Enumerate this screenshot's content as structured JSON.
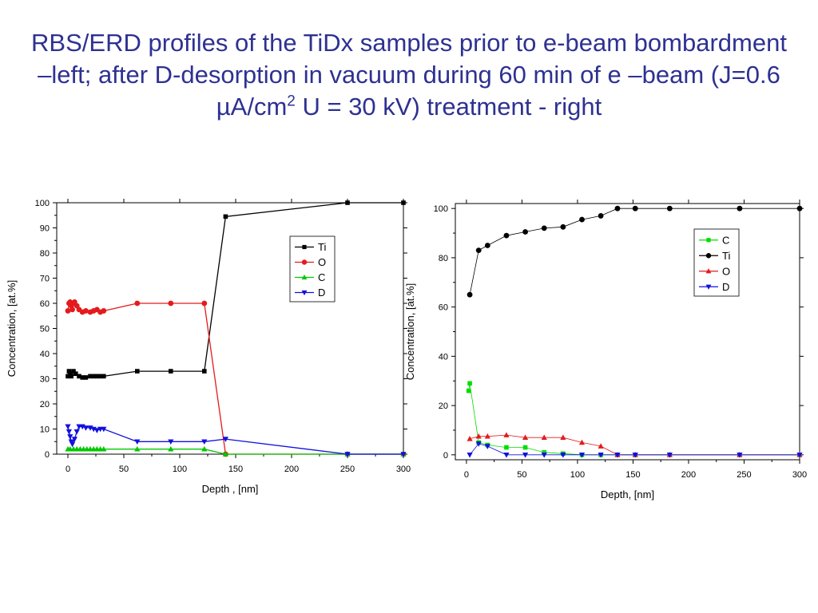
{
  "slide": {
    "title_part1": "RBS/ERD profiles of the TiDx samples prior to e-beam bombardment –left; after D-desorption in vacuum during 60 min of e –beam (J=0.6 µA/cm",
    "title_sup": "2",
    "title_part2": " U = 30 kV) treatment - right"
  },
  "chart_data": [
    {
      "type": "line",
      "xlabel": "Depth , [nm]",
      "ylabel": "Concentration, [at.%]",
      "xlim": [
        -10,
        300
      ],
      "ylim": [
        0,
        100
      ],
      "xticks": [
        0,
        50,
        100,
        150,
        200,
        250,
        300
      ],
      "yticks": [
        0,
        10,
        20,
        30,
        40,
        50,
        60,
        70,
        80,
        90,
        100
      ],
      "grid": false,
      "legend_position": "top-right",
      "series": [
        {
          "name": "Ti",
          "color": "#000000",
          "marker": "square",
          "x": [
            0,
            1,
            2,
            3,
            5,
            7,
            10,
            13,
            16,
            20,
            23,
            26,
            29,
            32,
            62,
            92,
            122,
            141,
            250,
            300
          ],
          "y": [
            31,
            33,
            32,
            31,
            33,
            32,
            31,
            30.5,
            30.5,
            31,
            31,
            31,
            31,
            31,
            33,
            33,
            33,
            94.5,
            100,
            100
          ]
        },
        {
          "name": "O",
          "color": "#e41a1c",
          "marker": "circle",
          "x": [
            0,
            1,
            2,
            3,
            4,
            6,
            8,
            10,
            13,
            16,
            20,
            23,
            26,
            29,
            32,
            62,
            92,
            122,
            141,
            250,
            300
          ],
          "y": [
            57,
            60,
            60.5,
            59,
            57.5,
            60.5,
            59,
            57.5,
            56.5,
            57,
            56.5,
            57,
            57.5,
            56.5,
            57,
            60,
            60,
            60,
            0,
            0,
            0
          ]
        },
        {
          "name": "C",
          "color": "#00c800",
          "marker": "triangle-up",
          "x": [
            0,
            2,
            5,
            8,
            11,
            14,
            17,
            20,
            23,
            26,
            29,
            32,
            62,
            92,
            122,
            141,
            250,
            300
          ],
          "y": [
            2,
            2,
            2,
            2,
            2,
            2,
            2,
            2,
            2,
            2,
            2,
            2,
            2,
            2,
            2,
            0,
            0,
            0
          ]
        },
        {
          "name": "D",
          "color": "#1111dd",
          "marker": "triangle-down",
          "x": [
            0,
            1,
            2,
            3,
            4,
            6,
            8,
            10,
            13,
            16,
            20,
            23,
            26,
            29,
            32,
            62,
            92,
            122,
            141,
            250,
            300
          ],
          "y": [
            11,
            9,
            7,
            5,
            4,
            6,
            9,
            11,
            11,
            10.5,
            10.5,
            10,
            9.5,
            10,
            10,
            5,
            5,
            5,
            6,
            0,
            0
          ]
        }
      ]
    },
    {
      "type": "line",
      "xlabel": "Depth, [nm]",
      "ylabel": "Concentration, [at.%]",
      "xlim": [
        -10,
        300
      ],
      "ylim": [
        -2,
        102
      ],
      "xticks": [
        0,
        50,
        100,
        150,
        200,
        250,
        300
      ],
      "yticks": [
        0,
        20,
        40,
        60,
        80,
        100
      ],
      "grid": false,
      "legend_position": "top-right",
      "series": [
        {
          "name": "C",
          "color": "#00dd00",
          "marker": "square",
          "x": [
            2,
            3,
            11,
            19,
            36,
            53,
            70,
            87,
            104,
            121,
            136,
            152,
            183,
            246,
            300
          ],
          "y": [
            26,
            29,
            5,
            4,
            3,
            3,
            1,
            0.5,
            0,
            0,
            0,
            0,
            0,
            0,
            0
          ]
        },
        {
          "name": "Ti",
          "color": "#000000",
          "marker": "circle",
          "x": [
            3,
            11,
            19,
            36,
            53,
            70,
            87,
            104,
            121,
            136,
            152,
            183,
            246,
            300
          ],
          "y": [
            65,
            83,
            85,
            89,
            90.5,
            92,
            92.5,
            95.5,
            97,
            100,
            100,
            100,
            100,
            100
          ]
        },
        {
          "name": "O",
          "color": "#e41a1c",
          "marker": "triangle-up",
          "x": [
            3,
            11,
            19,
            36,
            53,
            70,
            87,
            104,
            121,
            136,
            152,
            183,
            246,
            300
          ],
          "y": [
            6.5,
            7.5,
            7.5,
            8,
            7,
            7,
            7,
            5,
            3.5,
            0,
            0,
            0,
            0,
            0
          ]
        },
        {
          "name": "D",
          "color": "#1111dd",
          "marker": "triangle-down",
          "x": [
            3,
            11,
            19,
            36,
            53,
            70,
            87,
            104,
            121,
            136,
            152,
            183,
            246,
            300
          ],
          "y": [
            0,
            4.5,
            3.5,
            0,
            0,
            0,
            0,
            0,
            0,
            0,
            0,
            0,
            0,
            0
          ]
        }
      ]
    }
  ]
}
